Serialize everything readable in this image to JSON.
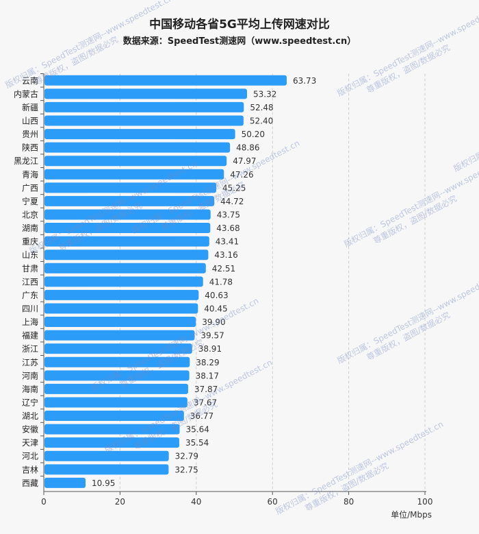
{
  "chart_data": {
    "type": "bar",
    "orientation": "horizontal",
    "title": "中国移动各省5G平均上传网速对比",
    "subtitle": "数据来源：SpeedTest测速网（www.speedtest.cn）",
    "xlabel": "单位/Mbps",
    "ylabel": "",
    "xlim": [
      0,
      100
    ],
    "xticks": [
      "0",
      "20",
      "40",
      "60",
      "80",
      "100"
    ],
    "grid": true,
    "categories": [
      "云南",
      "内蒙古",
      "新疆",
      "山西",
      "贵州",
      "陕西",
      "黑龙江",
      "青海",
      "广西",
      "宁夏",
      "北京",
      "湖南",
      "重庆",
      "山东",
      "甘肃",
      "江西",
      "广东",
      "四川",
      "上海",
      "福建",
      "浙江",
      "江苏",
      "河南",
      "海南",
      "辽宁",
      "湖北",
      "安徽",
      "天津",
      "河北",
      "吉林",
      "西藏"
    ],
    "values": [
      63.73,
      53.32,
      52.48,
      52.4,
      50.2,
      48.86,
      47.97,
      47.26,
      45.25,
      44.72,
      43.75,
      43.68,
      43.41,
      43.16,
      42.51,
      41.78,
      40.63,
      40.45,
      39.9,
      39.57,
      38.91,
      38.29,
      38.17,
      37.87,
      37.67,
      36.77,
      35.64,
      35.54,
      32.79,
      32.75,
      10.95
    ],
    "labels": [
      "63.73",
      "53.32",
      "52.48",
      "52.40",
      "50.20",
      "48.86",
      "47.97",
      "47.26",
      "45.25",
      "44.72",
      "43.75",
      "43.68",
      "43.41",
      "43.16",
      "42.51",
      "41.78",
      "40.63",
      "40.45",
      "39.90",
      "39.57",
      "38.91",
      "38.29",
      "38.17",
      "37.87",
      "37.67",
      "36.77",
      "35.64",
      "35.54",
      "32.79",
      "32.75",
      "10.95"
    ],
    "bar_color": "#2b9cf7"
  },
  "watermark": {
    "line1": "版权归属：SpeedTest测速网--www.speedtest.cn",
    "line2": "尊重版权，盗图/数据必究"
  }
}
